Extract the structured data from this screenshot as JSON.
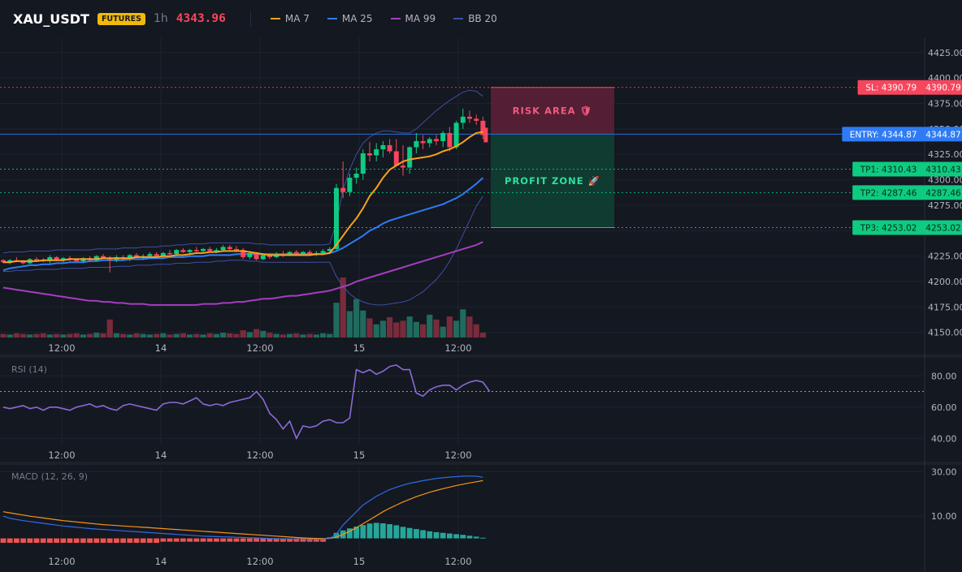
{
  "header": {
    "symbol": "XAU_USDT",
    "badge": "FUTURES",
    "interval": "1h",
    "last_price": "4343.96",
    "legend": [
      {
        "name": "MA 7",
        "color": "#f7a21b"
      },
      {
        "name": "MA 25",
        "color": "#2f7bf5"
      },
      {
        "name": "MA 99",
        "color": "#a43ec0"
      },
      {
        "name": "BB 20",
        "color": "#3f4fa6"
      }
    ]
  },
  "colors": {
    "up": "#0ecb81",
    "down": "#f6465d",
    "vol_up": "#1f6b5e",
    "vol_down": "#7a2b3b",
    "rsi": "#8a6ad8",
    "macd": "#2f6be8",
    "signal": "#f7931a",
    "hist_up": "#26a69a",
    "hist_down": "#ef5350",
    "sl": "#f6465d",
    "entry": "#2f7bf5",
    "tp": "#0ecb81"
  },
  "chart_data": [
    {
      "type": "candlestick",
      "x_tick_labels": [
        "12:00",
        "14",
        "12:00",
        "15",
        "12:00"
      ],
      "y_ticks": [
        4150,
        4175,
        4200,
        4225,
        4250,
        4275,
        4300,
        4325,
        4350,
        4375,
        4400,
        4425
      ],
      "y_tick_labels": [
        "4150.00",
        "4175.00",
        "4200.00",
        "4225.00",
        "4250.00",
        "4275.00",
        "4300.00",
        "4325.00",
        "4350.00",
        "4375.00",
        "4400.00",
        "4425.00"
      ],
      "ylim": [
        4145,
        4440
      ],
      "ohlc": [
        [
          4221,
          4222,
          4218,
          4219
        ],
        [
          4219,
          4222,
          4217,
          4221
        ],
        [
          4221,
          4224,
          4219,
          4220
        ],
        [
          4220,
          4221,
          4217,
          4218
        ],
        [
          4218,
          4223,
          4217,
          4222
        ],
        [
          4222,
          4224,
          4220,
          4221
        ],
        [
          4221,
          4223,
          4219,
          4220
        ],
        [
          4220,
          4226,
          4218,
          4224
        ],
        [
          4224,
          4225,
          4220,
          4221
        ],
        [
          4221,
          4224,
          4219,
          4223
        ],
        [
          4223,
          4225,
          4220,
          4222
        ],
        [
          4222,
          4223,
          4219,
          4220
        ],
        [
          4220,
          4224,
          4218,
          4223
        ],
        [
          4223,
          4225,
          4219,
          4221
        ],
        [
          4221,
          4226,
          4220,
          4225
        ],
        [
          4225,
          4227,
          4222,
          4223
        ],
        [
          4223,
          4225,
          4209,
          4221
        ],
        [
          4221,
          4226,
          4219,
          4224
        ],
        [
          4224,
          4226,
          4221,
          4222
        ],
        [
          4222,
          4227,
          4220,
          4226
        ],
        [
          4226,
          4228,
          4223,
          4224
        ],
        [
          4224,
          4227,
          4222,
          4225
        ],
        [
          4225,
          4229,
          4223,
          4227
        ],
        [
          4227,
          4229,
          4224,
          4225
        ],
        [
          4225,
          4229,
          4223,
          4228
        ],
        [
          4228,
          4231,
          4226,
          4227
        ],
        [
          4227,
          4232,
          4226,
          4231
        ],
        [
          4231,
          4233,
          4228,
          4229
        ],
        [
          4229,
          4232,
          4227,
          4231
        ],
        [
          4231,
          4234,
          4229,
          4230
        ],
        [
          4230,
          4233,
          4228,
          4232
        ],
        [
          4232,
          4234,
          4229,
          4230
        ],
        [
          4230,
          4233,
          4228,
          4231
        ],
        [
          4231,
          4236,
          4230,
          4234
        ],
        [
          4234,
          4236,
          4230,
          4232
        ],
        [
          4232,
          4235,
          4229,
          4231
        ],
        [
          4231,
          4233,
          4222,
          4224
        ],
        [
          4224,
          4230,
          4222,
          4228
        ],
        [
          4228,
          4229,
          4221,
          4222
        ],
        [
          4222,
          4227,
          4221,
          4226
        ],
        [
          4226,
          4228,
          4222,
          4224
        ],
        [
          4224,
          4229,
          4223,
          4227
        ],
        [
          4227,
          4230,
          4224,
          4226
        ],
        [
          4226,
          4230,
          4225,
          4229
        ],
        [
          4229,
          4231,
          4226,
          4227
        ],
        [
          4227,
          4230,
          4225,
          4229
        ],
        [
          4229,
          4231,
          4226,
          4227
        ],
        [
          4227,
          4230,
          4225,
          4228
        ],
        [
          4228,
          4232,
          4226,
          4230
        ],
        [
          4230,
          4234,
          4228,
          4232
        ],
        [
          4232,
          4296,
          4231,
          4292
        ],
        [
          4292,
          4318,
          4282,
          4288
        ],
        [
          4288,
          4306,
          4284,
          4302
        ],
        [
          4302,
          4312,
          4296,
          4306
        ],
        [
          4306,
          4330,
          4300,
          4326
        ],
        [
          4326,
          4337,
          4318,
          4324
        ],
        [
          4324,
          4336,
          4318,
          4330
        ],
        [
          4330,
          4338,
          4322,
          4334
        ],
        [
          4334,
          4340,
          4326,
          4328
        ],
        [
          4328,
          4340,
          4316,
          4314
        ],
        [
          4314,
          4334,
          4304,
          4312
        ],
        [
          4312,
          4333,
          4306,
          4332
        ],
        [
          4332,
          4346,
          4326,
          4338
        ],
        [
          4338,
          4344,
          4330,
          4336
        ],
        [
          4336,
          4342,
          4332,
          4340
        ],
        [
          4340,
          4344,
          4334,
          4338
        ],
        [
          4338,
          4348,
          4332,
          4346
        ],
        [
          4346,
          4352,
          4328,
          4332
        ],
        [
          4332,
          4358,
          4330,
          4356
        ],
        [
          4356,
          4370,
          4350,
          4362
        ],
        [
          4362,
          4368,
          4356,
          4360
        ],
        [
          4360,
          4364,
          4354,
          4358
        ],
        [
          4358,
          4362,
          4340,
          4344
        ]
      ],
      "volume": [
        6,
        5,
        7,
        6,
        5,
        6,
        7,
        5,
        6,
        5,
        6,
        7,
        5,
        6,
        8,
        7,
        30,
        7,
        6,
        5,
        7,
        6,
        5,
        6,
        7,
        5,
        6,
        7,
        5,
        6,
        5,
        7,
        6,
        8,
        7,
        6,
        12,
        9,
        14,
        11,
        8,
        6,
        5,
        6,
        7,
        5,
        6,
        5,
        7,
        6,
        58,
        100,
        44,
        64,
        45,
        32,
        22,
        28,
        34,
        25,
        28,
        35,
        26,
        22,
        38,
        30,
        18,
        35,
        28,
        47,
        35,
        22,
        8
      ],
      "ma7": [
        4219,
        4219,
        4220,
        4220,
        4220,
        4220,
        4221,
        4221,
        4221,
        4221,
        4222,
        4222,
        4222,
        4222,
        4222,
        4223,
        4223,
        4223,
        4223,
        4223,
        4224,
        4224,
        4224,
        4224,
        4225,
        4225,
        4226,
        4226,
        4227,
        4228,
        4228,
        4229,
        4229,
        4230,
        4230,
        4230,
        4230,
        4229,
        4228,
        4227,
        4226,
        4226,
        4226,
        4226,
        4226,
        4226,
        4226,
        4227,
        4227,
        4228,
        4236,
        4245,
        4254,
        4262,
        4272,
        4284,
        4292,
        4302,
        4310,
        4314,
        4318,
        4320,
        4321,
        4322,
        4323,
        4325,
        4328,
        4330,
        4333,
        4337,
        4342,
        4346,
        4347
      ],
      "ma25": [
        4211,
        4213,
        4214,
        4215,
        4216,
        4216,
        4217,
        4217,
        4218,
        4218,
        4219,
        4219,
        4219,
        4220,
        4220,
        4221,
        4221,
        4221,
        4221,
        4222,
        4222,
        4222,
        4223,
        4223,
        4223,
        4224,
        4224,
        4224,
        4225,
        4225,
        4225,
        4226,
        4226,
        4226,
        4226,
        4227,
        4227,
        4227,
        4227,
        4227,
        4227,
        4227,
        4227,
        4227,
        4227,
        4227,
        4227,
        4227,
        4227,
        4228,
        4230,
        4233,
        4237,
        4241,
        4245,
        4250,
        4253,
        4257,
        4260,
        4262,
        4264,
        4266,
        4268,
        4270,
        4272,
        4274,
        4276,
        4279,
        4282,
        4286,
        4291,
        4296,
        4302
      ],
      "ma99": [
        4194,
        4193,
        4192,
        4191,
        4190,
        4189,
        4188,
        4187,
        4186,
        4185,
        4184,
        4183,
        4182,
        4181,
        4181,
        4180,
        4180,
        4179,
        4179,
        4178,
        4178,
        4178,
        4177,
        4177,
        4177,
        4177,
        4177,
        4177,
        4177,
        4177,
        4178,
        4178,
        4178,
        4179,
        4179,
        4180,
        4180,
        4181,
        4182,
        4183,
        4183,
        4184,
        4185,
        4186,
        4186,
        4187,
        4188,
        4189,
        4190,
        4191,
        4193,
        4195,
        4197,
        4200,
        4202,
        4204,
        4206,
        4208,
        4210,
        4212,
        4214,
        4216,
        4218,
        4220,
        4222,
        4224,
        4226,
        4228,
        4230,
        4232,
        4234,
        4236,
        4239
      ],
      "bb_upper": [
        4228,
        4229,
        4229,
        4229,
        4230,
        4230,
        4230,
        4230,
        4231,
        4231,
        4231,
        4231,
        4231,
        4231,
        4232,
        4232,
        4232,
        4232,
        4233,
        4233,
        4233,
        4234,
        4234,
        4234,
        4235,
        4235,
        4236,
        4236,
        4237,
        4237,
        4237,
        4238,
        4238,
        4238,
        4238,
        4238,
        4238,
        4238,
        4237,
        4237,
        4236,
        4236,
        4236,
        4236,
        4236,
        4236,
        4236,
        4236,
        4236,
        4237,
        4258,
        4290,
        4310,
        4325,
        4336,
        4342,
        4346,
        4348,
        4348,
        4347,
        4346,
        4346,
        4350,
        4356,
        4362,
        4368,
        4373,
        4378,
        4382,
        4386,
        4388,
        4387,
        4382
      ],
      "bb_lower": [
        4210,
        4210,
        4211,
        4211,
        4211,
        4212,
        4212,
        4212,
        4212,
        4213,
        4213,
        4213,
        4213,
        4214,
        4214,
        4214,
        4214,
        4215,
        4215,
        4215,
        4216,
        4216,
        4216,
        4217,
        4217,
        4217,
        4218,
        4218,
        4218,
        4219,
        4219,
        4219,
        4220,
        4220,
        4221,
        4221,
        4221,
        4220,
        4220,
        4219,
        4219,
        4219,
        4219,
        4219,
        4219,
        4219,
        4219,
        4219,
        4219,
        4219,
        4205,
        4195,
        4188,
        4183,
        4180,
        4178,
        4177,
        4177,
        4178,
        4179,
        4180,
        4182,
        4186,
        4190,
        4196,
        4202,
        4210,
        4220,
        4232,
        4246,
        4260,
        4274,
        4284
      ],
      "levels": [
        {
          "name": "sl",
          "label": "SL: 4390.79",
          "axis_label": "4390.79",
          "value": 4390.79
        },
        {
          "name": "entry",
          "label": "ENTRY: 4344.87",
          "axis_label": "4344.87",
          "value": 4344.87
        },
        {
          "name": "tp1",
          "label": "TP1: 4310.43",
          "axis_label": "4310.43",
          "value": 4310.43
        },
        {
          "name": "tp2",
          "label": "TP2: 4287.46",
          "axis_label": "4287.46",
          "value": 4287.46
        },
        {
          "name": "tp3",
          "label": "TP3: 4253.02",
          "axis_label": "4253.02",
          "value": 4253.02
        }
      ],
      "zones": [
        {
          "name": "risk-area",
          "label": "RISK AREA 🛡",
          "from": 4344.87,
          "to": 4390.79
        },
        {
          "name": "profit-zone",
          "label": "PROFIT ZONE 🚀",
          "from": 4253.02,
          "to": 4344.87
        }
      ]
    },
    {
      "type": "line",
      "title": "RSI (14)",
      "y_ticks": [
        40,
        60,
        80
      ],
      "y_tick_labels": [
        "40.00",
        "60.00",
        "80.00"
      ],
      "ylim": [
        36,
        90
      ],
      "reference_line": 70,
      "values": [
        60,
        59,
        60,
        61,
        59,
        60,
        58,
        60,
        60,
        59,
        58,
        60,
        61,
        62,
        60,
        61,
        59,
        58,
        61,
        62,
        61,
        60,
        59,
        58,
        62,
        63,
        63,
        62,
        64,
        66,
        62,
        61,
        62,
        61,
        63,
        64,
        65,
        66,
        70,
        65,
        56,
        52,
        46,
        51,
        40,
        48,
        47,
        48,
        51,
        52,
        50,
        50,
        53,
        84,
        82,
        84,
        81,
        83,
        86,
        87,
        84,
        84,
        69,
        67,
        71,
        73,
        74,
        74,
        71,
        74,
        76,
        77,
        76,
        70
      ]
    },
    {
      "type": "bar+line",
      "title": "MACD (12, 26, 9)",
      "y_ticks": [
        10,
        30
      ],
      "y_tick_labels": [
        "10.00",
        "30.00"
      ],
      "ylim": [
        -6,
        32
      ],
      "macd": [
        10,
        9,
        8.5,
        8,
        7.6,
        7.2,
        6.8,
        6.4,
        6,
        5.6,
        5.3,
        5,
        4.7,
        4.4,
        4.2,
        4,
        3.8,
        3.6,
        3.4,
        3.2,
        3,
        2.8,
        2.6,
        2.4,
        2.2,
        2,
        1.8,
        1.6,
        1.4,
        1.2,
        1,
        0.9,
        0.8,
        0.7,
        0.6,
        0.5,
        0.4,
        0.3,
        0.2,
        0.1,
        0,
        -0.1,
        -0.2,
        -0.3,
        -0.4,
        -0.5,
        -0.6,
        -0.5,
        -0.4,
        0,
        2,
        6,
        9,
        12,
        15,
        17,
        19,
        20.5,
        22,
        23,
        24,
        24.8,
        25.4,
        26,
        26.5,
        27,
        27.3,
        27.6,
        27.8,
        28,
        28.1,
        28,
        27.5
      ],
      "signal": [
        12,
        11.5,
        11,
        10.5,
        10,
        9.6,
        9.2,
        8.8,
        8.4,
        8,
        7.7,
        7.4,
        7.1,
        6.8,
        6.5,
        6.2,
        6,
        5.8,
        5.6,
        5.4,
        5.2,
        5,
        4.8,
        4.6,
        4.4,
        4.2,
        4,
        3.8,
        3.6,
        3.4,
        3.2,
        3,
        2.8,
        2.6,
        2.4,
        2.2,
        2,
        1.8,
        1.6,
        1.4,
        1.2,
        1,
        0.8,
        0.6,
        0.4,
        0.2,
        0.1,
        0,
        -0.1,
        0,
        0.6,
        1.8,
        3.2,
        4.8,
        6.6,
        8.4,
        10.2,
        12,
        13.6,
        15,
        16.4,
        17.6,
        18.8,
        19.8,
        20.8,
        21.6,
        22.4,
        23.1,
        23.8,
        24.4,
        25,
        25.5,
        26
      ],
      "histogram": [
        -2,
        -2,
        -2,
        -2,
        -2,
        -2,
        -2,
        -2,
        -2,
        -2,
        -2,
        -2,
        -2,
        -2,
        -2,
        -2,
        -2,
        -2,
        -2,
        -2,
        -2,
        -2,
        -2,
        -2,
        -1.5,
        -1.5,
        -1.5,
        -1.5,
        -1.5,
        -1.5,
        -1.5,
        -1.5,
        -1.5,
        -1.5,
        -1.5,
        -1.5,
        -1.5,
        -1.5,
        -1.5,
        -1.5,
        -1.5,
        -1.5,
        -1.5,
        -1.5,
        -1.5,
        -1.5,
        -1.5,
        -1.5,
        -1.5,
        0.5,
        2.5,
        3.6,
        4.5,
        5.3,
        6,
        6.7,
        7,
        6.8,
        6.4,
        5.9,
        5.2,
        4.7,
        4.2,
        3.7,
        3.2,
        2.8,
        2.5,
        2.2,
        1.9,
        1.6,
        1.2,
        0.8,
        0.3
      ]
    }
  ]
}
